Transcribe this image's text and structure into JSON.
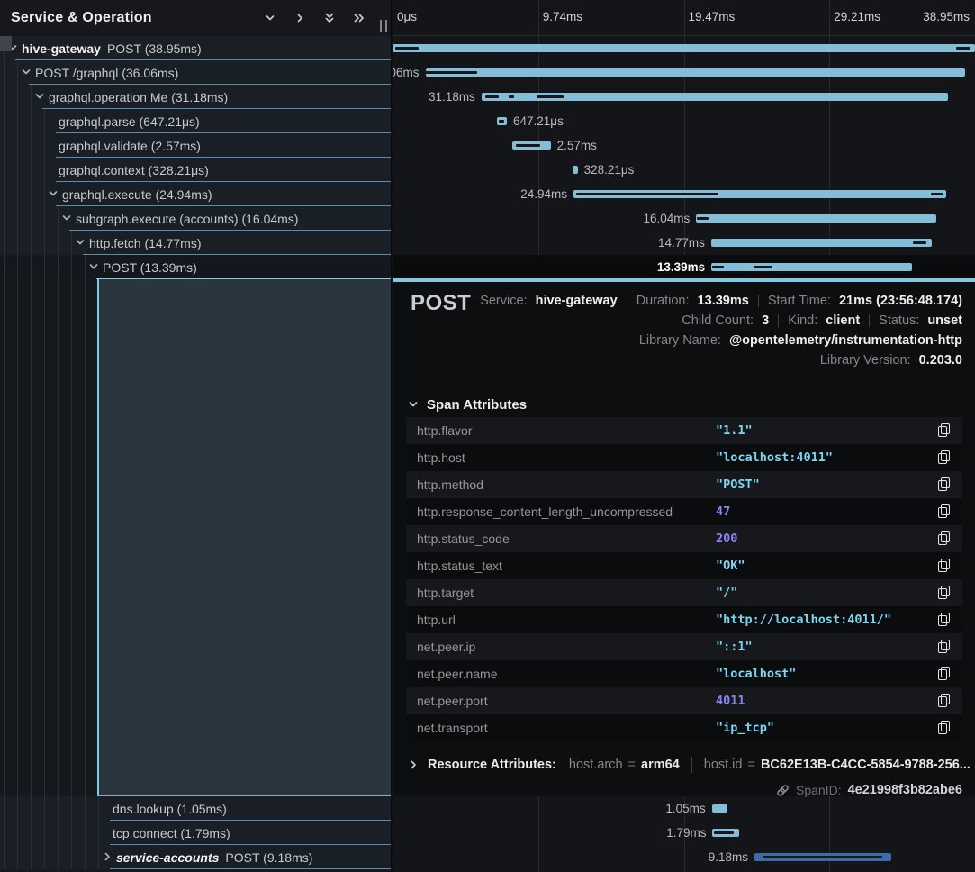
{
  "header": {
    "title": "Service & Operation",
    "icons": [
      {
        "name": "collapse-one-icon",
        "glyph": "chevron-down"
      },
      {
        "name": "expand-one-icon",
        "glyph": "chevron-right"
      },
      {
        "name": "collapse-all-icon",
        "glyph": "double-chevron-down"
      },
      {
        "name": "expand-all-icon",
        "glyph": "double-chevron-right"
      }
    ]
  },
  "ruler": {
    "ticks": [
      "0μs",
      "9.74ms",
      "19.47ms",
      "29.21ms",
      "38.95ms"
    ]
  },
  "colors": {
    "accent": "#7fc8e8",
    "span_bar": "#85bdd9",
    "secondary_span_bar": "#3e6cab",
    "row_underline": "#568db0",
    "string_value": "#7fd4f2",
    "number_value": "#8a85f5"
  },
  "trace": {
    "total_ms": 38.95,
    "rows": [
      {
        "service": "hive-gateway",
        "op": "POST",
        "dur": "38.95ms",
        "dur_ms": 38.95,
        "start_ms": 0,
        "depth": 0,
        "chevron": "down",
        "marks": [
          [
            0.5,
            4.0
          ],
          [
            96.8,
            2.4
          ]
        ]
      },
      {
        "op": "POST /graphql",
        "dur": "36.06ms",
        "dur_ms": 36.06,
        "start_ms": 2.2,
        "depth": 1,
        "chevron": "down",
        "marks": [
          [
            5.4,
            9.2
          ]
        ]
      },
      {
        "op": "graphql.operation Me",
        "dur": "31.18ms",
        "dur_ms": 31.18,
        "start_ms": 5.95,
        "depth": 2,
        "chevron": "down",
        "marks": [
          [
            15.9,
            2.3
          ],
          [
            20.0,
            0.9
          ],
          [
            24.7,
            4.6
          ]
        ]
      },
      {
        "op": "graphql.parse",
        "dur": "647.21μs",
        "dur_ms": 0.64721,
        "start_ms": 7.0,
        "depth": 3,
        "chevron": null,
        "marks": [
          [
            18.2,
            1.0
          ]
        ]
      },
      {
        "op": "graphql.validate",
        "dur": "2.57ms",
        "dur_ms": 2.57,
        "start_ms": 8.0,
        "depth": 3,
        "chevron": null,
        "marks": [
          [
            21.2,
            4.2
          ]
        ]
      },
      {
        "op": "graphql.context",
        "dur": "328.21μs",
        "dur_ms": 0.32821,
        "start_ms": 12.05,
        "depth": 3,
        "chevron": null,
        "marks": []
      },
      {
        "op": "graphql.execute",
        "dur": "24.94ms",
        "dur_ms": 24.94,
        "start_ms": 12.1,
        "depth": 3,
        "chevron": "down",
        "marks": [
          [
            31.5,
            24.5
          ],
          [
            92.5,
            2.0
          ]
        ]
      },
      {
        "op": "subgraph.execute (accounts)",
        "dur": "16.04ms",
        "dur_ms": 16.04,
        "start_ms": 20.3,
        "depth": 4,
        "chevron": "down",
        "marks": [
          [
            52.3,
            2.0
          ]
        ]
      },
      {
        "op": "http.fetch",
        "dur": "14.77ms",
        "dur_ms": 14.77,
        "start_ms": 21.3,
        "depth": 5,
        "chevron": "down",
        "marks": [
          [
            89.4,
            2.2
          ]
        ]
      },
      {
        "op": "POST",
        "dur": "13.39ms",
        "dur_ms": 13.39,
        "start_ms": 21.32,
        "depth": 6,
        "chevron": "down",
        "selected": true,
        "marks": [
          [
            54.9,
            2.0
          ],
          [
            62.0,
            3.0
          ]
        ]
      },
      {
        "op": "dns.lookup",
        "dur": "1.05ms",
        "dur_ms": 1.05,
        "start_ms": 21.35,
        "depth": 7,
        "chevron": null,
        "marks": []
      },
      {
        "op": "tcp.connect",
        "dur": "1.79ms",
        "dur_ms": 1.79,
        "start_ms": 21.4,
        "depth": 7,
        "chevron": null,
        "marks": [
          [
            55.2,
            3.4
          ]
        ]
      },
      {
        "service": "service-accounts",
        "italic": true,
        "op": "POST",
        "dur": "9.18ms",
        "dur_ms": 9.18,
        "start_ms": 24.2,
        "depth": 7,
        "chevron": "right",
        "color": "secondary",
        "marks": [
          [
            63.6,
            20.5
          ]
        ]
      }
    ]
  },
  "detail": {
    "title": "POST",
    "meta_lines": [
      [
        {
          "label": "Service:",
          "value": "hive-gateway"
        },
        {
          "label": "Duration:",
          "value": "13.39ms"
        },
        {
          "label": "Start Time:",
          "value": "21ms (23:56:48.174)"
        }
      ],
      [
        {
          "label": "Child Count:",
          "value": "3"
        },
        {
          "label": "Kind:",
          "value": "client"
        },
        {
          "label": "Status:",
          "value": "unset"
        }
      ],
      [
        {
          "label": "Library Name:",
          "value": "@opentelemetry/instrumentation-http"
        }
      ],
      [
        {
          "label": "Library Version:",
          "value": "0.203.0"
        }
      ]
    ],
    "span_attributes": {
      "title": "Span Attributes",
      "rows": [
        {
          "key": "http.flavor",
          "value": "\"1.1\"",
          "type": "string"
        },
        {
          "key": "http.host",
          "value": "\"localhost:4011\"",
          "type": "string"
        },
        {
          "key": "http.method",
          "value": "\"POST\"",
          "type": "string"
        },
        {
          "key": "http.response_content_length_uncompressed",
          "value": "47",
          "type": "number"
        },
        {
          "key": "http.status_code",
          "value": "200",
          "type": "number"
        },
        {
          "key": "http.status_text",
          "value": "\"OK\"",
          "type": "string"
        },
        {
          "key": "http.target",
          "value": "\"/\"",
          "type": "string"
        },
        {
          "key": "http.url",
          "value": "\"http://localhost:4011/\"",
          "type": "string"
        },
        {
          "key": "net.peer.ip",
          "value": "\"::1\"",
          "type": "string"
        },
        {
          "key": "net.peer.name",
          "value": "\"localhost\"",
          "type": "string"
        },
        {
          "key": "net.peer.port",
          "value": "4011",
          "type": "number"
        },
        {
          "key": "net.transport",
          "value": "\"ip_tcp\"",
          "type": "string"
        }
      ]
    },
    "resource_attributes": {
      "title": "Resource Attributes:",
      "items": [
        {
          "key": "host.arch",
          "value": "arm64"
        },
        {
          "key": "host.id",
          "value": "BC62E13B-C4CC-5854-9788-256..."
        }
      ]
    },
    "span_id": {
      "label": "SpanID:",
      "value": "4e21998f3b82abe6"
    }
  }
}
